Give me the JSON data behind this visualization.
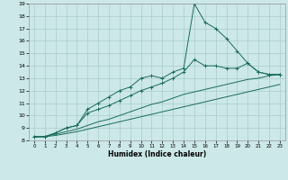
{
  "xlabel": "Humidex (Indice chaleur)",
  "bg_color": "#cce8e8",
  "grid_color": "#aacccc",
  "line_color": "#1a6b5a",
  "xlim": [
    -0.5,
    23.5
  ],
  "ylim": [
    8,
    19
  ],
  "xticks": [
    0,
    1,
    2,
    3,
    4,
    5,
    6,
    7,
    8,
    9,
    10,
    11,
    12,
    13,
    14,
    15,
    16,
    17,
    18,
    19,
    20,
    21,
    22,
    23
  ],
  "yticks": [
    8,
    9,
    10,
    11,
    12,
    13,
    14,
    15,
    16,
    17,
    18,
    19
  ],
  "line1_x": [
    0,
    1,
    2,
    3,
    4,
    5,
    6,
    7,
    8,
    9,
    10,
    11,
    12,
    13,
    14,
    15,
    16,
    17,
    18,
    19,
    20,
    21,
    22,
    23
  ],
  "line1_y": [
    8.3,
    8.3,
    8.6,
    9.0,
    9.2,
    10.5,
    11.0,
    11.5,
    12.0,
    12.3,
    13.0,
    13.2,
    13.0,
    13.5,
    13.8,
    19.0,
    17.5,
    17.0,
    16.2,
    15.2,
    14.2,
    13.5,
    13.3,
    13.3
  ],
  "line2_x": [
    0,
    1,
    2,
    3,
    4,
    5,
    6,
    7,
    8,
    9,
    10,
    11,
    12,
    13,
    14,
    15,
    16,
    17,
    18,
    19,
    20,
    21,
    22,
    23
  ],
  "line2_y": [
    8.3,
    8.3,
    8.6,
    9.0,
    9.2,
    10.2,
    10.5,
    10.8,
    11.2,
    11.6,
    12.0,
    12.3,
    12.6,
    13.0,
    13.5,
    14.5,
    14.0,
    14.0,
    13.8,
    13.8,
    14.2,
    13.5,
    13.3,
    13.3
  ],
  "line3_x": [
    0,
    1,
    2,
    3,
    4,
    5,
    6,
    7,
    8,
    9,
    10,
    11,
    12,
    13,
    14,
    15,
    16,
    17,
    18,
    19,
    20,
    21,
    22,
    23
  ],
  "line3_y": [
    8.3,
    8.3,
    8.5,
    8.7,
    8.9,
    9.2,
    9.5,
    9.7,
    10.0,
    10.3,
    10.6,
    10.9,
    11.1,
    11.4,
    11.7,
    11.9,
    12.1,
    12.3,
    12.5,
    12.7,
    12.9,
    13.0,
    13.2,
    13.3
  ],
  "line4_x": [
    0,
    1,
    2,
    3,
    4,
    5,
    6,
    7,
    8,
    9,
    10,
    11,
    12,
    13,
    14,
    15,
    16,
    17,
    18,
    19,
    20,
    21,
    22,
    23
  ],
  "line4_y": [
    8.3,
    8.3,
    8.4,
    8.55,
    8.7,
    8.9,
    9.1,
    9.3,
    9.5,
    9.7,
    9.9,
    10.1,
    10.3,
    10.5,
    10.7,
    10.9,
    11.1,
    11.3,
    11.5,
    11.7,
    11.9,
    12.1,
    12.3,
    12.5
  ]
}
